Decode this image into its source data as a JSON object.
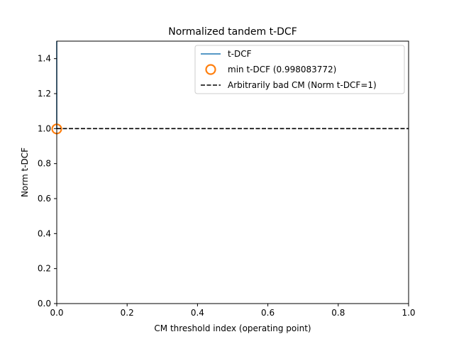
{
  "chart_data": {
    "type": "line",
    "title": "Normalized tandem t-DCF",
    "xlabel": "CM threshold index (operating point)",
    "ylabel": "Norm t-DCF",
    "xlim": [
      0.0,
      1.0
    ],
    "ylim": [
      0.0,
      1.5
    ],
    "x_ticks": [
      "0.0",
      "0.2",
      "0.4",
      "0.6",
      "0.8",
      "1.0"
    ],
    "y_ticks": [
      "0.0",
      "0.2",
      "0.4",
      "0.6",
      "0.8",
      "1.0",
      "1.2",
      "1.4"
    ],
    "grid": false,
    "legend_position": "top-right",
    "series": [
      {
        "name": "t-DCF",
        "kind": "line",
        "color": "#1f77b4",
        "x": [
          0.0,
          0.0
        ],
        "y": [
          1.0,
          1.5
        ]
      },
      {
        "name": "min t-DCF (0.998083772)",
        "kind": "marker",
        "marker": "hollow-circle",
        "color": "#ff7f0e",
        "x": [
          0.0
        ],
        "y": [
          0.998083772
        ]
      },
      {
        "name": "Arbitrarily bad CM (Norm t-DCF=1)",
        "kind": "hline",
        "style": "dashed",
        "color": "#000000",
        "y": 1.0
      }
    ]
  }
}
